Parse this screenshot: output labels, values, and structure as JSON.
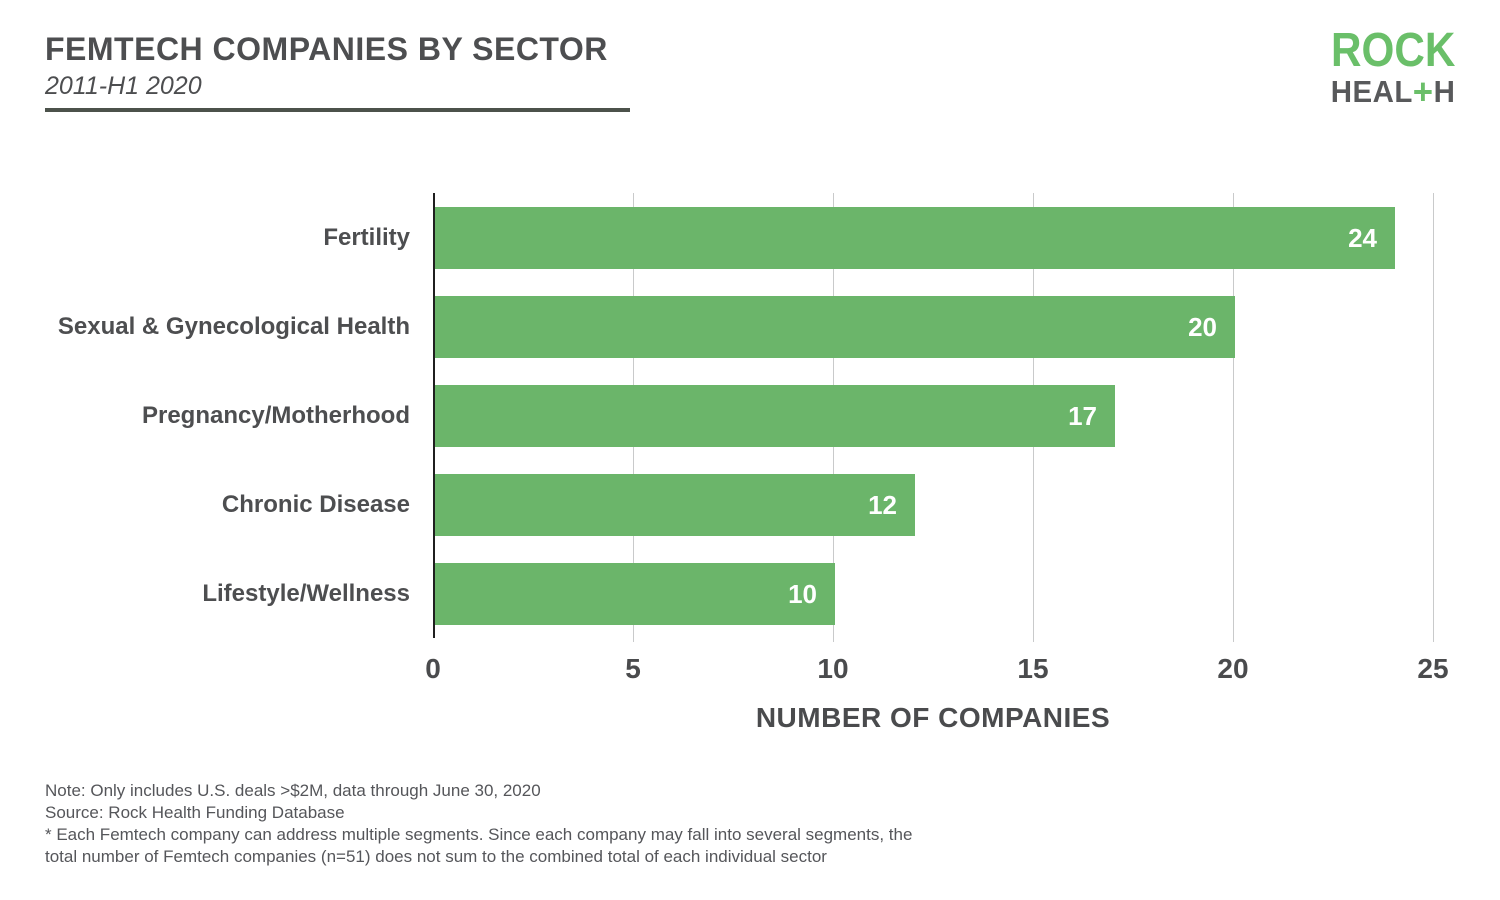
{
  "header": {
    "title": "FEMTECH COMPANIES BY SECTOR",
    "subtitle": "2011-H1 2020"
  },
  "logo": {
    "line1": "ROCK",
    "heal": "HEAL",
    "plus": "+",
    "h": "H",
    "green": "#6abf69",
    "gray": "#58595b"
  },
  "chart_data": {
    "type": "bar",
    "orientation": "horizontal",
    "title": "FEMTECH COMPANIES BY SECTOR",
    "subtitle": "2011-H1 2020",
    "categories": [
      "Fertility",
      "Sexual & Gynecological Health",
      "Pregnancy/Motherhood",
      "Chronic Disease",
      "Lifestyle/Wellness"
    ],
    "values": [
      24,
      20,
      17,
      12,
      10
    ],
    "xlabel": "NUMBER OF COMPANIES",
    "ylabel": "",
    "xlim": [
      0,
      25
    ],
    "xticks": [
      0,
      5,
      10,
      15,
      20,
      25
    ],
    "grid": true,
    "legend": "none",
    "bar_color": "#6bb56a",
    "value_label_color": "#ffffff"
  },
  "notes": {
    "lines": [
      "Note: Only includes U.S. deals >$2M, data through June 30, 2020",
      "Source: Rock Health Funding Database",
      "* Each Femtech company can address multiple segments. Since each company may fall into several segments, the",
      "total number of Femtech companies (n=51) does not sum to the combined total of each individual sector"
    ]
  }
}
